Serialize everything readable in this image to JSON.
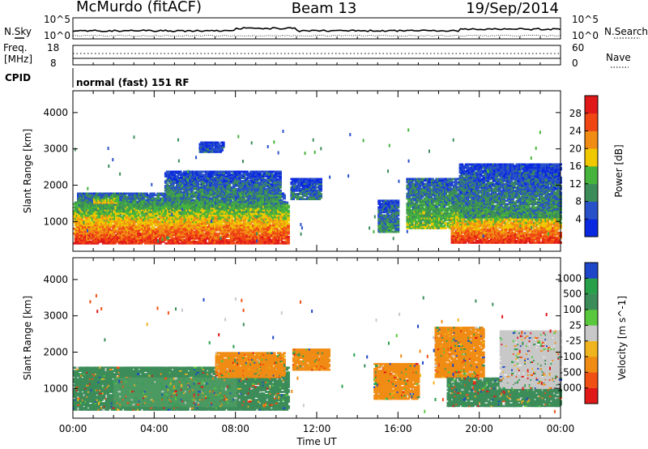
{
  "header": {
    "site": "McMurdo (fitACF)",
    "beam": "Beam 13",
    "date": "19/Sep/2014"
  },
  "noise_panel": {
    "left_label": "N.Sky",
    "right_label": "N.Search",
    "tick_top": "10^5",
    "tick_bottom": "10^0"
  },
  "freq_panel": {
    "left_label_1": "Freq.",
    "left_label_2": "[MHz]",
    "left_tick_top": "18",
    "left_tick_bottom": "8",
    "right_label": "Nave",
    "right_tick_top": "60",
    "right_tick_bottom": "0"
  },
  "cpid_panel": {
    "label": "CPID",
    "program": "normal (fast) 151 RF"
  },
  "chart_data": [
    {
      "type": "heatmap",
      "title": "Power",
      "ylabel": "Slant Range [km]",
      "xlabel": "Time UT",
      "x_ticks": [
        "00:00",
        "04:00",
        "08:00",
        "12:00",
        "16:00",
        "20:00",
        "00:00"
      ],
      "xlim_hours": [
        0,
        24
      ],
      "y_ticks": [
        1000,
        2000,
        3000,
        4000
      ],
      "ylim": [
        180,
        4600
      ],
      "colorbar": {
        "label": "Power [dB]",
        "tick_labels": [
          "4",
          "8",
          "12",
          "16",
          "20",
          "24",
          "28"
        ],
        "range": [
          0,
          32
        ],
        "colors": [
          "#0a28e0",
          "#2850c8",
          "#3c8c5a",
          "#46b43c",
          "#f0c800",
          "#f08c14",
          "#f04614",
          "#e01818"
        ]
      },
      "blobs": [
        {
          "t0": 0.0,
          "t1": 10.6,
          "r0": 380,
          "r1": 1550,
          "v": 26
        },
        {
          "t0": 0.2,
          "t1": 10.4,
          "r0": 1200,
          "r1": 1800,
          "v": 14
        },
        {
          "t0": 4.5,
          "t1": 10.2,
          "r0": 1700,
          "r1": 2400,
          "v": 9
        },
        {
          "t0": 1.0,
          "t1": 2.2,
          "r0": 1500,
          "r1": 1750,
          "v": 18
        },
        {
          "t0": 6.2,
          "t1": 7.4,
          "r0": 2900,
          "r1": 3200,
          "v": 6
        },
        {
          "t0": 10.7,
          "t1": 12.2,
          "r0": 1600,
          "r1": 2200,
          "v": 8
        },
        {
          "t0": 15.0,
          "t1": 16.0,
          "r0": 700,
          "r1": 1600,
          "v": 10
        },
        {
          "t0": 16.4,
          "t1": 19.2,
          "r0": 800,
          "r1": 2200,
          "v": 14
        },
        {
          "t0": 18.6,
          "t1": 24.0,
          "r0": 400,
          "r1": 1400,
          "v": 26
        },
        {
          "t0": 19.0,
          "t1": 24.0,
          "r0": 1100,
          "r1": 2600,
          "v": 10
        }
      ]
    },
    {
      "type": "heatmap",
      "title": "Velocity",
      "ylabel": "Slant Range [km]",
      "xlabel": "Time UT",
      "x_ticks": [
        "00:00",
        "04:00",
        "08:00",
        "12:00",
        "16:00",
        "20:00",
        "00:00"
      ],
      "xlim_hours": [
        0,
        24
      ],
      "y_ticks": [
        1000,
        2000,
        3000,
        4000
      ],
      "ylim": [
        180,
        4600
      ],
      "colorbar": {
        "label": "Velocity [m s^-1]",
        "tick_labels": [
          "1000",
          "500",
          "100",
          "25",
          "-25",
          "-100",
          "-500",
          "-1000"
        ],
        "colors": [
          "#1e46c8",
          "#28a04a",
          "#3c8c5a",
          "#5ac83c",
          "#c8c8c8",
          "#f0b41e",
          "#f08c14",
          "#f05014",
          "#e01818"
        ]
      },
      "blobs": [
        {
          "t0": 0.0,
          "t1": 10.6,
          "r0": 400,
          "r1": 1600,
          "v": "#3c8c5a"
        },
        {
          "t0": 2.0,
          "t1": 8.0,
          "r0": 500,
          "r1": 1300,
          "v": "#4a9a62"
        },
        {
          "t0": 7.0,
          "t1": 10.4,
          "r0": 1300,
          "r1": 2000,
          "v": "#f08c14"
        },
        {
          "t0": 10.8,
          "t1": 12.6,
          "r0": 1500,
          "r1": 2100,
          "v": "#f08c14"
        },
        {
          "t0": 14.8,
          "t1": 17.0,
          "r0": 700,
          "r1": 1700,
          "v": "#f08c14"
        },
        {
          "t0": 17.8,
          "t1": 20.2,
          "r0": 1300,
          "r1": 2700,
          "v": "#f08c14"
        },
        {
          "t0": 18.4,
          "t1": 24.0,
          "r0": 500,
          "r1": 1300,
          "v": "#3c8c5a"
        },
        {
          "t0": 21.0,
          "t1": 24.0,
          "r0": 1000,
          "r1": 2600,
          "v": "#c8c8c8"
        }
      ]
    }
  ]
}
